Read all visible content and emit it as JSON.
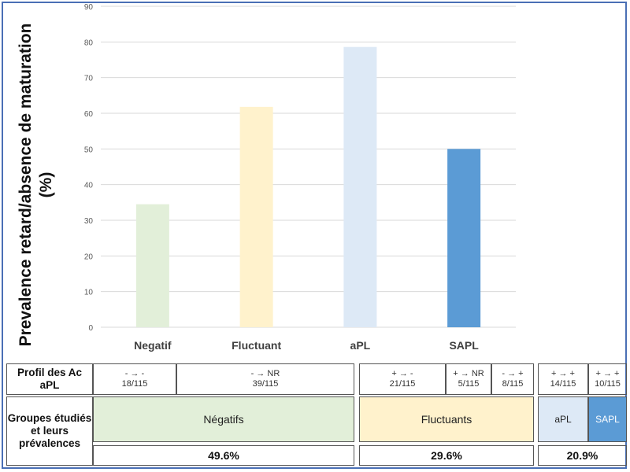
{
  "chart_data": {
    "type": "bar",
    "ylabel": "Prevalence retard/absence de maturation (%)",
    "ylim": [
      0,
      90
    ],
    "yticks": [
      0,
      10,
      20,
      30,
      40,
      50,
      60,
      70,
      80,
      90
    ],
    "grid": true,
    "categories": [
      "Negatif",
      "Fluctuant",
      "aPL",
      "SAPL"
    ],
    "values": [
      34.5,
      61.8,
      78.6,
      50.0
    ],
    "colors": [
      "#e2efd9",
      "#fff2cc",
      "#dde9f6",
      "#5b9bd5"
    ]
  },
  "table": {
    "profile_header": "Profil des Ac aPL",
    "profiles": [
      {
        "label": "- → -",
        "count": "18/115"
      },
      {
        "label": "- → NR",
        "count": "39/115"
      },
      {
        "label": "+ → -",
        "count": "21/115"
      },
      {
        "label": "+ → NR",
        "count": "5/115"
      },
      {
        "label": "- → +",
        "count": "8/115"
      },
      {
        "label": "+ → +",
        "count": "14/115"
      },
      {
        "label": "+ → +",
        "count": "10/115"
      }
    ],
    "groups_header": "Groupes étudiés et leurs prévalences",
    "groups": [
      {
        "label": "Négatifs",
        "color": "#e2efd9"
      },
      {
        "label": "Fluctuants",
        "color": "#fff2cc"
      },
      {
        "label": "aPL",
        "color": "#dde9f6"
      },
      {
        "label": "SAPL",
        "color": "#5b9bd5"
      }
    ],
    "prevalences": [
      "49.6%",
      "29.6%",
      "20.9%"
    ]
  }
}
